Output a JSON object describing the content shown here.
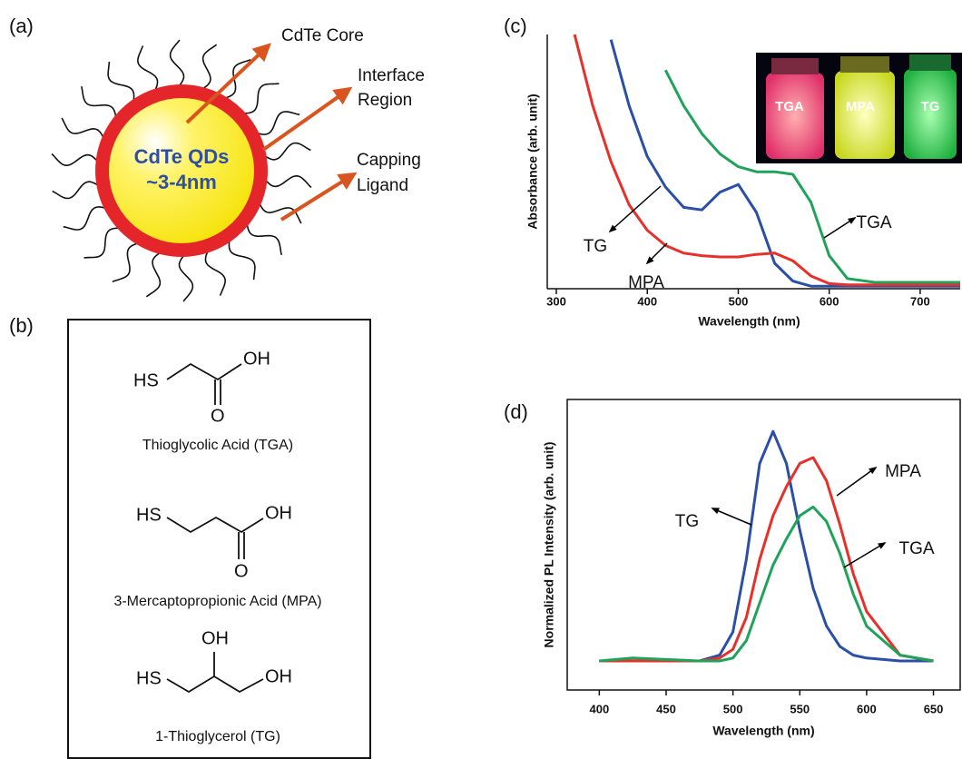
{
  "diagram": {
    "label": "(a)",
    "center": [
      "CdTe QDs",
      "~3-4nm"
    ],
    "callouts": [
      [
        "CdTe Core"
      ],
      [
        "Interface",
        "Region"
      ],
      [
        "Capping",
        "Ligand"
      ]
    ]
  },
  "structures": {
    "label": "(b)",
    "items": [
      {
        "name": "Thioglycolic Acid (TGA)",
        "atoms": [
          "HS",
          "OH",
          "O"
        ]
      },
      {
        "name": "3-Mercaptopropionic Acid (MPA)",
        "atoms": [
          "HS",
          "OH",
          "O"
        ]
      },
      {
        "name": "1-Thioglycerol (TG)",
        "atoms": [
          "OH",
          "HS",
          "OH"
        ]
      }
    ]
  },
  "chart_data": [
    {
      "type": "line",
      "title": "(c)",
      "x_label": "Wavelength (nm)",
      "y_label": "Absorbance (arb. unit)",
      "x": [
        320,
        340,
        360,
        380,
        400,
        420,
        440,
        460,
        480,
        500,
        520,
        540,
        560,
        580,
        600,
        620,
        650,
        700,
        744
      ],
      "series": [
        {
          "name": "TG",
          "color": "#2b4fa6",
          "values": [
            null,
            null,
            0.98,
            0.72,
            0.52,
            0.4,
            0.32,
            0.31,
            0.38,
            0.41,
            0.3,
            0.1,
            0.03,
            0.01,
            0.01,
            0.01,
            0.01,
            0.01,
            0.01
          ]
        },
        {
          "name": "MPA",
          "color": "#e8302a",
          "values": [
            1.0,
            0.72,
            0.5,
            0.33,
            0.23,
            0.17,
            0.14,
            0.13,
            0.125,
            0.125,
            0.135,
            0.14,
            0.11,
            0.05,
            0.02,
            0.015,
            0.015,
            0.015,
            0.015
          ]
        },
        {
          "name": "TGA",
          "color": "#1fa35a",
          "values": [
            null,
            null,
            null,
            null,
            null,
            0.86,
            0.72,
            0.61,
            0.53,
            0.48,
            0.46,
            0.46,
            0.45,
            0.34,
            0.13,
            0.04,
            0.025,
            0.025,
            0.025
          ]
        }
      ],
      "xlim": [
        290,
        744
      ],
      "ylim": [
        0,
        1
      ],
      "xticks": [
        300,
        400,
        500,
        600,
        700
      ],
      "annotations": [
        "TG",
        "MPA",
        "TGA"
      ],
      "inset_labels": [
        "TGA",
        "MPA",
        "TG"
      ]
    },
    {
      "type": "line",
      "title": "(d)",
      "x_label": "Wavelength (nm)",
      "y_label": "Normalized PL Intensity (arb. unit)",
      "x": [
        400,
        425,
        450,
        475,
        490,
        500,
        510,
        520,
        530,
        540,
        550,
        560,
        570,
        580,
        590,
        600,
        625,
        650
      ],
      "series": [
        {
          "name": "TG",
          "color": "#2b4fa6",
          "values": [
            0.1,
            0.1,
            0.1,
            0.1,
            0.12,
            0.2,
            0.45,
            0.78,
            0.89,
            0.78,
            0.55,
            0.35,
            0.22,
            0.15,
            0.12,
            0.11,
            0.1,
            0.1
          ]
        },
        {
          "name": "MPA",
          "color": "#e8302a",
          "values": [
            0.1,
            0.1,
            0.1,
            0.1,
            0.11,
            0.14,
            0.25,
            0.45,
            0.6,
            0.7,
            0.78,
            0.8,
            0.72,
            0.57,
            0.4,
            0.27,
            0.12,
            0.1
          ]
        },
        {
          "name": "TGA",
          "color": "#1fa35a",
          "values": [
            0.1,
            0.11,
            0.105,
            0.1,
            0.1,
            0.11,
            0.17,
            0.3,
            0.43,
            0.52,
            0.6,
            0.63,
            0.58,
            0.47,
            0.33,
            0.22,
            0.12,
            0.1
          ]
        }
      ],
      "xlim": [
        376,
        670
      ],
      "ylim": [
        0,
        1
      ],
      "xticks": [
        400,
        450,
        500,
        550,
        600,
        650
      ],
      "annotations": [
        "TG",
        "MPA",
        "TGA"
      ]
    }
  ]
}
